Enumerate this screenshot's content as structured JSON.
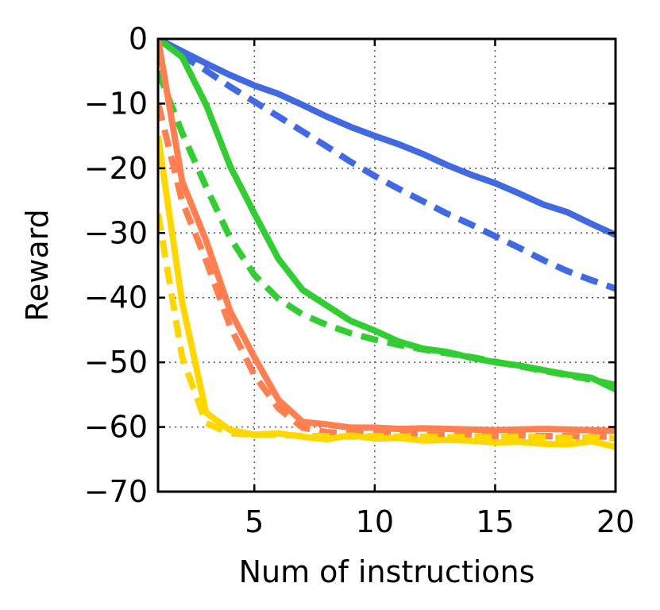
{
  "chart_data": {
    "type": "line",
    "title": "",
    "xlabel": "Num of instructions",
    "ylabel": "Reward",
    "xlim": [
      1,
      20
    ],
    "ylim": [
      -70,
      0
    ],
    "xticks": [
      5,
      10,
      15,
      20
    ],
    "xtick_labels": [
      "5",
      "10",
      "15",
      "20"
    ],
    "yticks": [
      0,
      -10,
      -20,
      -30,
      -40,
      -50,
      -60,
      -70
    ],
    "ytick_labels": [
      "0",
      "−10",
      "−20",
      "−30",
      "−40",
      "−50",
      "−60",
      "−70"
    ],
    "grid": true,
    "x": [
      1,
      2,
      3,
      4,
      5,
      6,
      7,
      8,
      9,
      10,
      11,
      12,
      13,
      14,
      15,
      16,
      17,
      18,
      19,
      20
    ],
    "series": [
      {
        "name": "blue solid",
        "color": "#4169e1",
        "dash": "solid",
        "values": [
          0,
          -1.9,
          -3.8,
          -5.6,
          -7.2,
          -8.5,
          -10.2,
          -12.0,
          -13.6,
          -15.0,
          -16.3,
          -17.8,
          -19.5,
          -21.0,
          -22.3,
          -23.9,
          -25.6,
          -26.8,
          -28.6,
          -30.3
        ]
      },
      {
        "name": "blue dashed",
        "color": "#4169e1",
        "dash": "dashed",
        "values": [
          0,
          -2.6,
          -4.9,
          -7.4,
          -9.7,
          -12.0,
          -14.3,
          -16.6,
          -19.0,
          -21.2,
          -23.2,
          -25.1,
          -27.0,
          -28.7,
          -30.5,
          -32.3,
          -34.2,
          -35.9,
          -37.3,
          -38.6
        ]
      },
      {
        "name": "green solid",
        "color": "#32cd32",
        "dash": "solid",
        "values": [
          0,
          -2.8,
          -10.2,
          -19.7,
          -27.0,
          -34.0,
          -38.8,
          -41.2,
          -43.6,
          -45.1,
          -46.8,
          -47.9,
          -48.4,
          -49.3,
          -50.0,
          -50.5,
          -51.2,
          -51.9,
          -52.4,
          -54.2
        ]
      },
      {
        "name": "green dashed",
        "color": "#32cd32",
        "dash": "dashed",
        "values": [
          -5.0,
          -14.5,
          -22.9,
          -30.8,
          -36.5,
          -40.2,
          -42.6,
          -44.2,
          -45.5,
          -46.5,
          -47.3,
          -48.0,
          -48.6,
          -49.2,
          -49.9,
          -50.6,
          -51.3,
          -52.0,
          -52.7,
          -53.5
        ]
      },
      {
        "name": "orange solid",
        "color": "#ff7f50",
        "dash": "solid",
        "values": [
          0,
          -22.0,
          -31.2,
          -42.1,
          -49.2,
          -55.8,
          -59.2,
          -59.6,
          -60.1,
          -60.1,
          -60.3,
          -60.2,
          -60.3,
          -60.4,
          -60.5,
          -60.4,
          -60.3,
          -60.4,
          -60.5,
          -60.6
        ]
      },
      {
        "name": "orange dashed",
        "color": "#ff7f50",
        "dash": "dashed",
        "values": [
          -10.0,
          -25.1,
          -34.3,
          -44.5,
          -52.0,
          -57.1,
          -60.1,
          -60.8,
          -61.0,
          -61.0,
          -61.2,
          -61.2,
          -61.3,
          -61.3,
          -61.4,
          -61.3,
          -61.4,
          -61.4,
          -61.5,
          -61.5
        ]
      },
      {
        "name": "yellow solid",
        "color": "#ffd700",
        "dash": "solid",
        "values": [
          -15.0,
          -40.7,
          -57.8,
          -60.5,
          -61.2,
          -61.0,
          -61.5,
          -61.9,
          -61.3,
          -61.8,
          -61.7,
          -62.1,
          -62.0,
          -62.1,
          -62.4,
          -62.3,
          -62.6,
          -62.7,
          -62.2,
          -63.1
        ]
      },
      {
        "name": "yellow dashed",
        "color": "#ffd700",
        "dash": "dashed",
        "values": [
          -27.0,
          -49.2,
          -59.4,
          -61.0,
          -61.2,
          -61.2,
          -61.4,
          -61.4,
          -61.5,
          -61.4,
          -61.5,
          -61.5,
          -61.6,
          -61.5,
          -61.6,
          -61.5,
          -61.6,
          -61.7,
          -61.6,
          -61.8
        ]
      }
    ]
  }
}
